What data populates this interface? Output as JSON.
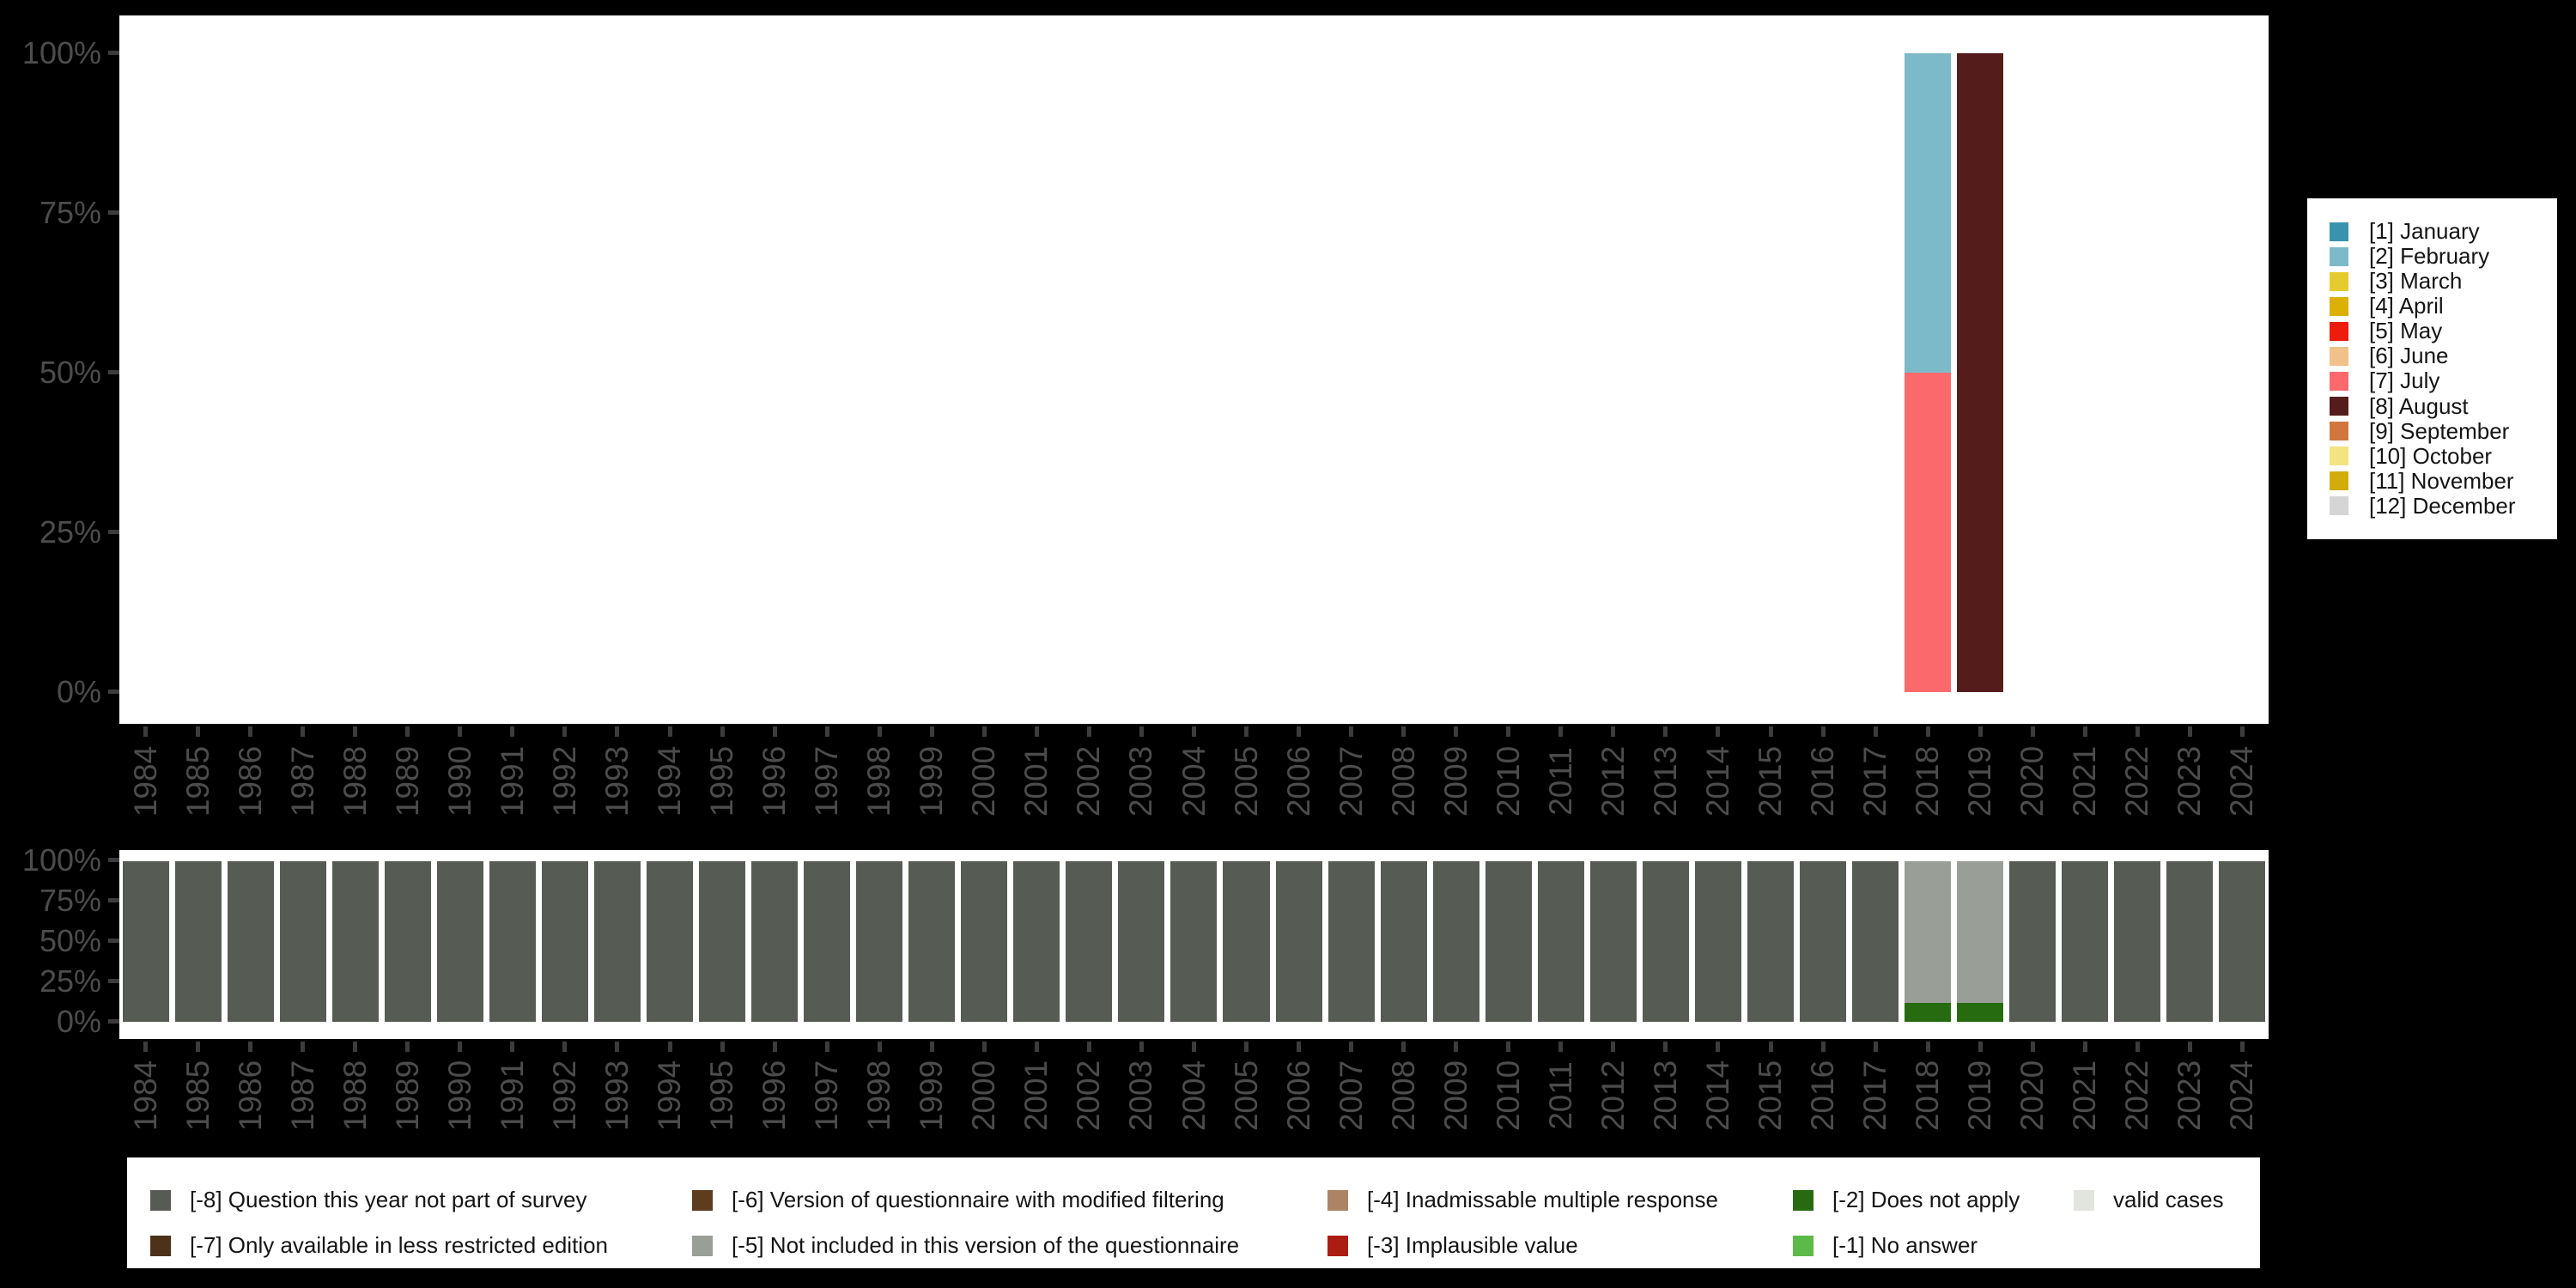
{
  "background_color": "#000000",
  "plot_background_color": "#ffffff",
  "axis_text_color": "#4c4c4c",
  "tick_color": "#3c3c3c",
  "years": [
    "1984",
    "1985",
    "1986",
    "1987",
    "1988",
    "1989",
    "1990",
    "1991",
    "1992",
    "1993",
    "1994",
    "1995",
    "1996",
    "1997",
    "1998",
    "1999",
    "2000",
    "2001",
    "2002",
    "2003",
    "2004",
    "2005",
    "2006",
    "2007",
    "2008",
    "2009",
    "2010",
    "2011",
    "2012",
    "2013",
    "2014",
    "2015",
    "2016",
    "2017",
    "2018",
    "2019",
    "2020",
    "2021",
    "2022",
    "2023",
    "2024"
  ],
  "chart_data": [
    {
      "id": "month-distribution",
      "type": "bar",
      "stacked": true,
      "title": "",
      "xlabel": "",
      "ylabel": "",
      "ylim": [
        0,
        100
      ],
      "grid": false,
      "y_ticks": [
        "100%",
        "75%",
        "50%",
        "25%",
        "0%"
      ],
      "categories_ref": "years",
      "bars_note": "segments listed top-to-bottom; years not listed have no bar",
      "bars": {
        "2018": [
          {
            "label": "[2] February",
            "color": "#7cbac9",
            "pct": 50
          },
          {
            "label": "[7] July",
            "color": "#fb696c",
            "pct": 50
          }
        ],
        "2019": [
          {
            "label": "[8] August",
            "color": "#541d1c",
            "pct": 100
          }
        ]
      },
      "legend_position": "right",
      "legend": [
        {
          "label": "[1] January",
          "color": "#3a93ae"
        },
        {
          "label": "[2] February",
          "color": "#7cbac9"
        },
        {
          "label": "[3] March",
          "color": "#e6cb2f"
        },
        {
          "label": "[4] April",
          "color": "#dcb005"
        },
        {
          "label": "[5] May",
          "color": "#ee1c0c"
        },
        {
          "label": "[6] June",
          "color": "#f0c189"
        },
        {
          "label": "[7] July",
          "color": "#fb696c"
        },
        {
          "label": "[8] August",
          "color": "#541d1c"
        },
        {
          "label": "[9] September",
          "color": "#d1763e"
        },
        {
          "label": "[10] October",
          "color": "#f2e383"
        },
        {
          "label": "[11] November",
          "color": "#d2ac0b"
        },
        {
          "label": "[12] December",
          "color": "#d5d5d5"
        }
      ]
    },
    {
      "id": "missing-values",
      "type": "bar",
      "stacked": true,
      "title": "",
      "xlabel": "",
      "ylabel": "",
      "ylim": [
        0,
        100
      ],
      "grid": false,
      "y_ticks": [
        "100%",
        "75%",
        "50%",
        "25%",
        "0%"
      ],
      "categories_ref": "years",
      "default_bar": [
        {
          "label": "[-8] Question this year not part of survey",
          "color": "#565c53",
          "pct": 100
        }
      ],
      "bars_note": "segments listed top-to-bottom; all years use default_bar unless listed",
      "bars": {
        "2018": [
          {
            "label": "[-5] Not included in this version of the questionnaire",
            "color": "#999f96",
            "pct": 88
          },
          {
            "label": "[-2] Does not apply",
            "color": "#266b10",
            "pct": 12
          }
        ],
        "2019": [
          {
            "label": "[-5] Not included in this version of the questionnaire",
            "color": "#999f96",
            "pct": 88
          },
          {
            "label": "[-2] Does not apply",
            "color": "#266b10",
            "pct": 12
          }
        ]
      },
      "legend_position": "bottom",
      "legend": [
        {
          "label": "[-8] Question this year not part of survey",
          "color": "#565c53"
        },
        {
          "label": "[-6] Version of questionnaire with modified filtering",
          "color": "#5e3c20"
        },
        {
          "label": "[-4] Inadmissable multiple response",
          "color": "#ac8465"
        },
        {
          "label": "[-2] Does not apply",
          "color": "#266b10"
        },
        {
          "label": "valid cases",
          "color": "#e1e5de"
        },
        {
          "label": "[-7] Only available in less restricted edition",
          "color": "#4d3118"
        },
        {
          "label": "[-5] Not included in this version of the questionnaire",
          "color": "#999f96"
        },
        {
          "label": "[-3] Implausible value",
          "color": "#ab1d12"
        },
        {
          "label": "[-1] No answer",
          "color": "#5cba48"
        }
      ]
    }
  ]
}
